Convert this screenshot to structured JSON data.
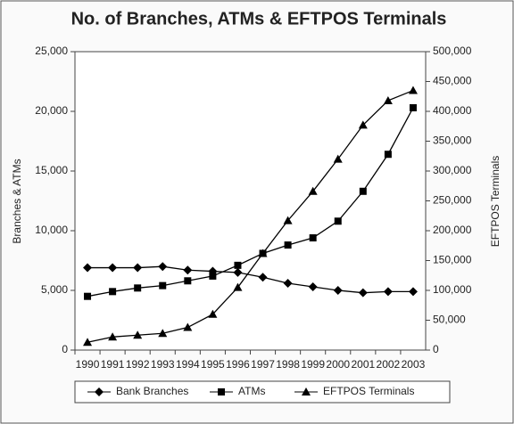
{
  "chart_data": {
    "type": "line",
    "title": "No. of Branches, ATMs & EFTPOS Terminals",
    "y_label": "Branches & ATMs",
    "y2_label": "EFTPOS Terminals",
    "categories": [
      "1990",
      "1991",
      "1992",
      "1993",
      "1994",
      "1995",
      "1996",
      "1997",
      "1998",
      "1999",
      "2000",
      "2001",
      "2002",
      "2003"
    ],
    "series": [
      {
        "name": "Bank Branches",
        "color": "#000000",
        "marker": "diamond",
        "values": [
          6900,
          6900,
          6900,
          7000,
          6700,
          6600,
          6500,
          6100,
          5600,
          5300,
          5000,
          4800,
          4900,
          4900
        ]
      },
      {
        "name": "ATMs",
        "color": "#000000",
        "marker": "square",
        "values": [
          4500,
          4900,
          5200,
          5400,
          5800,
          6200,
          7100,
          8100,
          8800,
          9400,
          10800,
          13300,
          16400,
          20300
        ]
      },
      {
        "name": "EFTPOS Terminals",
        "color": "#000000",
        "marker": "triangle",
        "axis": "y2",
        "values": [
          13000,
          22000,
          25000,
          28000,
          38000,
          60000,
          105000,
          162000,
          217000,
          266000,
          320000,
          377000,
          418000,
          435000
        ]
      }
    ],
    "ylim": [
      0,
      25000
    ],
    "yticks": [
      0,
      {
        "value": 5000,
        "label": "5,000"
      },
      {
        "value": 10000,
        "label": "10,000"
      },
      {
        "value": 15000,
        "label": "15,000"
      },
      {
        "value": 20000,
        "label": "20,000"
      },
      {
        "value": 25000,
        "label": "25,000"
      }
    ],
    "y2lim": [
      0,
      500000
    ],
    "y2ticks": [
      0,
      {
        "value": 50000,
        "label": "50,000"
      },
      {
        "value": 100000,
        "label": "100,000"
      },
      {
        "value": 150000,
        "label": "150,000"
      },
      {
        "value": 200000,
        "label": "200,000"
      },
      {
        "value": 250000,
        "label": "250,000"
      },
      {
        "value": 300000,
        "label": "300,000"
      },
      {
        "value": 350000,
        "label": "350,000"
      },
      {
        "value": 400000,
        "label": "400,000"
      },
      {
        "value": 450000,
        "label": "450,000"
      },
      {
        "value": 500000,
        "label": "500,000"
      }
    ],
    "grid": false,
    "legend": "bottom"
  }
}
